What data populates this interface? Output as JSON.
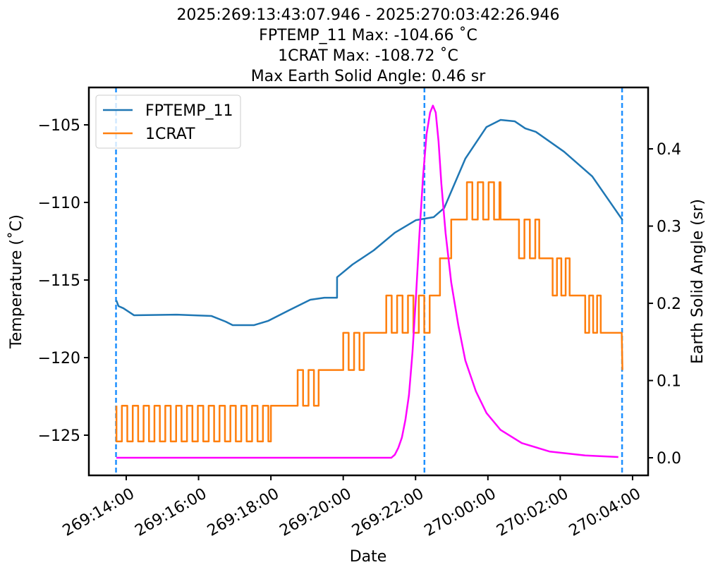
{
  "chart_data": {
    "type": "line",
    "title": [
      "2025:269:13:43:07.946 - 2025:270:03:42:26.946",
      "FPTEMP_11 Max: -104.66 ˚C",
      "1CRAT Max: -108.72 ˚C",
      "Max Earth Solid Angle: 0.46 sr"
    ],
    "xlabel": "Date",
    "ylabel": "Temperature (˚C)",
    "y2label": "Earth Solid Angle (sr)",
    "xlim": [
      12.967,
      28.43
    ],
    "xticks": [
      {
        "value": 14,
        "label": "269:14:00"
      },
      {
        "value": 16,
        "label": "269:16:00"
      },
      {
        "value": 18,
        "label": "269:18:00"
      },
      {
        "value": 20,
        "label": "269:20:00"
      },
      {
        "value": 22,
        "label": "269:22:00"
      },
      {
        "value": 24,
        "label": "270:00:00"
      },
      {
        "value": 26,
        "label": "270:02:00"
      },
      {
        "value": 28,
        "label": "270:04:00"
      }
    ],
    "ylim": [
      -127.59,
      -102.59
    ],
    "yticks": [
      {
        "value": -125,
        "label": "−125"
      },
      {
        "value": -120,
        "label": "−120"
      },
      {
        "value": -115,
        "label": "−115"
      },
      {
        "value": -110,
        "label": "−110"
      },
      {
        "value": -105,
        "label": "−105"
      }
    ],
    "y2lim": [
      -0.0228,
      0.4795
    ],
    "y2ticks": [
      {
        "value": 0,
        "label": "0.0"
      },
      0.1,
      0.2,
      0.3,
      0.4
    ],
    "legend": "upper left",
    "vlines": {
      "color": "#1e90ff",
      "x": [
        13.718,
        22.245,
        27.71
      ]
    },
    "series": [
      {
        "name": "FPTEMP_11",
        "color": "#1f77b4",
        "x": [
          13.727,
          13.786,
          13.922,
          14.214,
          15.384,
          16.359,
          16.749,
          16.943,
          17.528,
          17.918,
          18.503,
          19.088,
          19.478,
          19.829,
          19.83,
          20.257,
          20.842,
          21.427,
          22.012,
          22.499,
          22.791,
          23.376,
          23.961,
          24.351,
          24.741,
          25.033,
          25.326,
          26.105,
          26.885,
          27.723
        ],
        "values": [
          -116.32,
          -116.68,
          -116.82,
          -117.27,
          -117.23,
          -117.32,
          -117.68,
          -117.91,
          -117.91,
          -117.64,
          -116.95,
          -116.27,
          -116.14,
          -116.14,
          -114.82,
          -114.0,
          -113.09,
          -111.95,
          -111.14,
          -110.95,
          -110.36,
          -107.18,
          -105.14,
          -104.68,
          -104.77,
          -105.23,
          -105.45,
          -106.73,
          -108.32,
          -111.14
        ]
      },
      {
        "name": "1CRAT",
        "color": "#ff7f0e",
        "x": [
          13.73,
          13.73,
          13.88,
          13.88,
          14.03,
          14.03,
          14.18,
          14.18,
          14.33,
          14.33,
          14.48,
          14.48,
          14.63,
          14.63,
          14.78,
          14.78,
          14.93,
          14.93,
          15.08,
          15.08,
          15.23,
          15.23,
          15.38,
          15.38,
          15.53,
          15.53,
          15.68,
          15.68,
          15.83,
          15.83,
          15.98,
          15.98,
          16.13,
          16.13,
          16.28,
          16.28,
          16.43,
          16.43,
          16.58,
          16.58,
          16.73,
          16.73,
          16.88,
          16.88,
          17.03,
          17.03,
          17.18,
          17.18,
          17.33,
          17.33,
          17.48,
          17.48,
          17.63,
          17.63,
          17.78,
          17.78,
          17.93,
          17.93,
          18.0,
          18.0,
          18.74,
          18.74,
          18.89,
          18.89,
          19.04,
          19.04,
          19.19,
          19.19,
          19.32,
          19.32,
          20.0,
          20.0,
          20.15,
          20.15,
          20.3,
          20.3,
          20.45,
          20.45,
          20.57,
          20.57,
          21.19,
          21.19,
          21.34,
          21.34,
          21.49,
          21.49,
          21.64,
          21.64,
          21.79,
          21.79,
          21.94,
          21.94,
          22.09,
          22.09,
          22.24,
          22.24,
          22.39,
          22.39,
          22.675,
          22.675,
          22.986,
          22.986,
          23.42,
          23.42,
          23.57,
          23.57,
          23.72,
          23.72,
          23.87,
          23.87,
          24.02,
          24.02,
          24.17,
          24.17,
          24.32,
          24.32,
          24.35,
          24.35,
          24.86,
          24.86,
          25.01,
          25.01,
          25.16,
          25.16,
          25.31,
          25.31,
          25.42,
          25.42,
          25.79,
          25.79,
          25.91,
          25.91,
          26.03,
          26.03,
          26.15,
          26.15,
          26.26,
          26.26,
          26.69,
          26.69,
          26.8,
          26.8,
          26.91,
          26.91,
          27.02,
          27.02,
          27.12,
          27.12,
          27.7,
          27.72
        ],
        "values": [
          -123.1,
          -125.4,
          -125.4,
          -123.1,
          -123.1,
          -125.4,
          -125.4,
          -123.1,
          -123.1,
          -125.4,
          -125.4,
          -123.1,
          -123.1,
          -125.4,
          -125.4,
          -123.1,
          -123.1,
          -125.4,
          -125.4,
          -123.1,
          -123.1,
          -125.4,
          -125.4,
          -123.1,
          -123.1,
          -125.4,
          -125.4,
          -123.1,
          -123.1,
          -125.4,
          -125.4,
          -123.1,
          -123.1,
          -125.4,
          -125.4,
          -123.1,
          -123.1,
          -125.4,
          -125.4,
          -123.1,
          -123.1,
          -125.4,
          -125.4,
          -123.1,
          -123.1,
          -125.4,
          -125.4,
          -123.1,
          -123.1,
          -125.4,
          -125.4,
          -123.1,
          -123.1,
          -125.4,
          -125.4,
          -123.1,
          -123.1,
          -125.4,
          -125.4,
          -123.1,
          -123.1,
          -120.8,
          -120.8,
          -123.1,
          -123.1,
          -120.8,
          -120.8,
          -123.1,
          -123.1,
          -120.8,
          -120.8,
          -118.4,
          -118.4,
          -120.8,
          -120.8,
          -118.4,
          -118.4,
          -120.8,
          -120.8,
          -118.4,
          -118.4,
          -116.0,
          -116.0,
          -118.4,
          -118.4,
          -116.0,
          -116.0,
          -118.4,
          -118.4,
          -116.0,
          -116.0,
          -118.4,
          -118.4,
          -116.0,
          -116.0,
          -118.4,
          -118.4,
          -116.0,
          -116.0,
          -113.6,
          -113.6,
          -111.1,
          -111.1,
          -108.7,
          -108.7,
          -111.1,
          -111.1,
          -108.7,
          -108.7,
          -111.1,
          -111.1,
          -108.7,
          -108.7,
          -111.1,
          -111.1,
          -108.7,
          -108.7,
          -111.1,
          -111.1,
          -113.6,
          -113.6,
          -111.1,
          -111.1,
          -113.6,
          -113.6,
          -111.1,
          -111.1,
          -113.6,
          -113.6,
          -116.0,
          -116.0,
          -113.6,
          -113.6,
          -116.0,
          -116.0,
          -113.6,
          -113.6,
          -116.0,
          -116.0,
          -118.4,
          -118.4,
          -116.0,
          -116.0,
          -118.4,
          -118.4,
          -116.0,
          -116.0,
          -118.4,
          -118.4,
          -120.8
        ]
      },
      {
        "name": "Earth Solid Angle",
        "color": "#ff00ff",
        "axis": "y2",
        "x": [
          13.727,
          21.329,
          21.427,
          21.524,
          21.621,
          21.719,
          21.817,
          21.914,
          22.012,
          22.109,
          22.207,
          22.304,
          22.402,
          22.48,
          22.558,
          22.635,
          22.713,
          22.83,
          22.986,
          23.181,
          23.376,
          23.669,
          23.961,
          24.351,
          24.936,
          25.715,
          26.69,
          27.606
        ],
        "values": [
          0.0,
          0.0,
          0.004,
          0.013,
          0.026,
          0.049,
          0.081,
          0.136,
          0.209,
          0.291,
          0.364,
          0.419,
          0.447,
          0.456,
          0.447,
          0.41,
          0.355,
          0.291,
          0.227,
          0.172,
          0.126,
          0.086,
          0.058,
          0.036,
          0.019,
          0.008,
          0.003,
          0.001
        ]
      }
    ]
  }
}
